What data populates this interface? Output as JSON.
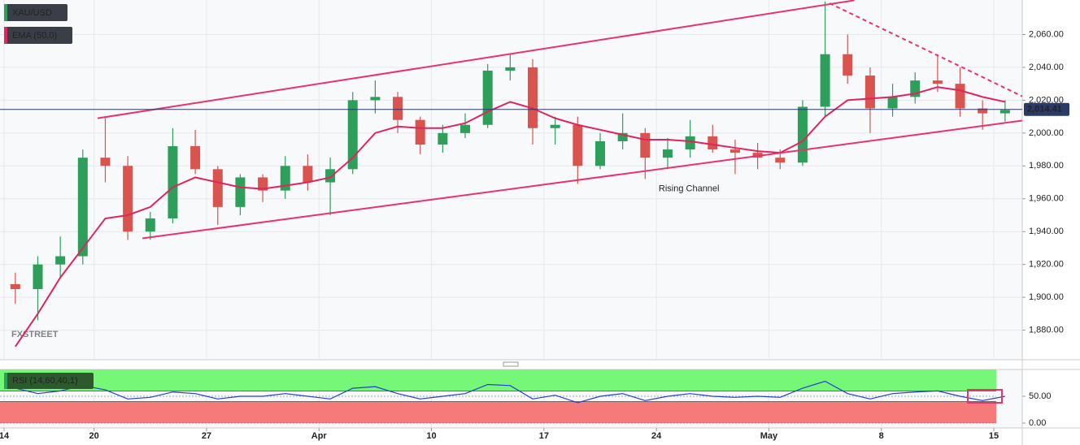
{
  "chart_data": [
    {
      "type": "candlestick",
      "name": "XAU/USD",
      "up_color": "#2e9e5b",
      "down_color": "#d9534f",
      "categories": [
        "14",
        null,
        null,
        null,
        "20",
        null,
        null,
        null,
        null,
        "27",
        null,
        null,
        null,
        null,
        "Apr",
        null,
        null,
        null,
        null,
        "10",
        null,
        null,
        null,
        null,
        "17",
        null,
        null,
        null,
        null,
        "24",
        null,
        null,
        null,
        null,
        "May",
        null,
        null,
        null,
        null,
        "8",
        null,
        null,
        null,
        null,
        "15"
      ],
      "open": [
        1908,
        1905,
        1920,
        1925,
        1985,
        1980,
        1940,
        1948,
        1992,
        1978,
        1955,
        1973,
        1965,
        1980,
        1970,
        1978,
        2020,
        2022,
        2008,
        1993,
        2000,
        2005,
        2038,
        2040,
        2003,
        2005,
        1980,
        1995,
        2000,
        1985,
        1990,
        1998,
        1990,
        1988,
        1985,
        1982,
        2016,
        2048,
        2035,
        2015,
        2022,
        2032,
        2030,
        2015,
        2012
      ],
      "high": [
        1915,
        1925,
        1937,
        1990,
        2009,
        1986,
        1952,
        2003,
        2002,
        1980,
        1975,
        1975,
        1986,
        1987,
        1985,
        2025,
        2032,
        2025,
        2010,
        2005,
        2012,
        2042,
        2048,
        2045,
        2010,
        2010,
        2000,
        2012,
        2003,
        1997,
        2008,
        2005,
        1996,
        1994,
        1990,
        2020,
        2080,
        2060,
        2040,
        2030,
        2037,
        2048,
        2040,
        2020,
        2020
      ],
      "low": [
        1896,
        1886,
        1912,
        1920,
        1970,
        1935,
        1935,
        1945,
        1975,
        1944,
        1950,
        1958,
        1960,
        1965,
        1950,
        1975,
        2012,
        2000,
        1987,
        1988,
        1997,
        2003,
        2032,
        1993,
        1993,
        1969,
        1978,
        1990,
        1972,
        1978,
        1985,
        1988,
        1975,
        1978,
        1978,
        1980,
        2010,
        2030,
        2000,
        2010,
        2018,
        2025,
        2010,
        2002,
        2007
      ],
      "close": [
        1905,
        1920,
        1925,
        1985,
        1980,
        1940,
        1948,
        1992,
        1978,
        1955,
        1973,
        1965,
        1980,
        1970,
        1978,
        2020,
        2022,
        2008,
        1993,
        2000,
        2005,
        2038,
        2040,
        2003,
        2005,
        1980,
        1995,
        2000,
        1985,
        1990,
        1998,
        1990,
        1988,
        1985,
        1982,
        2016,
        2048,
        2035,
        2015,
        2022,
        2032,
        2030,
        2015,
        2012,
        2014
      ],
      "overlay": {
        "name": "EMA (50,0)",
        "color": "#e0245e",
        "values": [
          1870,
          1890,
          1912,
          1930,
          1948,
          1950,
          1955,
          1967,
          1973,
          1970,
          1967,
          1966,
          1968,
          1970,
          1973,
          1985,
          2000,
          2004,
          2003,
          2003,
          2006,
          2013,
          2019,
          2015,
          2009,
          2005,
          2002,
          1999,
          1996,
          1996,
          1995,
          1993,
          1991,
          1989,
          1988,
          1995,
          2010,
          2020,
          2021,
          2022,
          2024,
          2028,
          2026,
          2022,
          2019
        ]
      },
      "last_price": {
        "value": 2014.41,
        "label": "2,014.41"
      },
      "ylim": [
        1862,
        2081
      ],
      "yticks": [
        {
          "value": 1880,
          "label": "1,880.00"
        },
        {
          "value": 1900,
          "label": "1,900.00"
        },
        {
          "value": 1920,
          "label": "1,920.00"
        },
        {
          "value": 1940,
          "label": "1,940.00"
        },
        {
          "value": 1960,
          "label": "1,960.00"
        },
        {
          "value": 1980,
          "label": "1,980.00"
        },
        {
          "value": 2000,
          "label": "2,000.00"
        },
        {
          "value": 2020,
          "label": "2,020.00"
        },
        {
          "value": 2040,
          "label": "2,040.00"
        },
        {
          "value": 2060,
          "label": "2,060.00"
        }
      ],
      "grid": true,
      "trendlines": [
        {
          "x": [
            4.16,
            37.8
          ],
          "y": [
            2009,
            2080.8
          ],
          "color": "#e8336c",
          "dashed": false
        },
        {
          "x": [
            6.15,
            45.26
          ],
          "y": [
            1935.9,
            2007.6
          ],
          "color": "#e8336c",
          "dashed": false
        },
        {
          "x": [
            36.7,
            45.26
          ],
          "y": [
            2079,
            2022.4
          ],
          "color": "#e8336c",
          "dashed": true
        }
      ],
      "annotation": {
        "text": "Rising Channel",
        "x": 29.1,
        "y": 1966,
        "color": "#e8336c"
      },
      "watermark": "FXSTREET"
    },
    {
      "type": "line",
      "name": "RSI (14,60,40,1)",
      "color": "#2040d0",
      "values": [
        65,
        55,
        60,
        70,
        62,
        45,
        48,
        58,
        55,
        45,
        50,
        50,
        55,
        50,
        45,
        65,
        68,
        55,
        45,
        50,
        55,
        72,
        70,
        45,
        52,
        38,
        50,
        55,
        42,
        50,
        55,
        50,
        48,
        50,
        48,
        65,
        78,
        55,
        45,
        55,
        58,
        60,
        50,
        42,
        50
      ],
      "ylim": [
        0,
        100
      ],
      "yticks": [
        {
          "value": 0,
          "label": "0.00"
        },
        {
          "value": 50,
          "label": "50.00"
        }
      ],
      "bands": {
        "upper": 60,
        "lower": 40,
        "upper_color": "#77f777",
        "lower_color": "#f77a7a"
      }
    }
  ]
}
